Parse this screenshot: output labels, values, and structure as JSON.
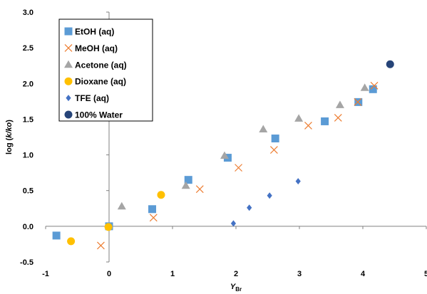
{
  "chart_data": {
    "type": "scatter",
    "xlabel": "Y",
    "xlabel_sub": "Br",
    "ylabel_prefix": "log (",
    "ylabel_italic": "k/ko",
    "ylabel_suffix": ")",
    "xlim": [
      -1,
      5
    ],
    "ylim": [
      -0.5,
      3.0
    ],
    "xticks": [
      -1,
      0,
      1,
      2,
      3,
      4,
      5
    ],
    "xtick_labels": [
      "-1",
      "0",
      "1",
      "2",
      "3",
      "4",
      "5"
    ],
    "yticks": [
      -0.5,
      0.0,
      0.5,
      1.0,
      1.5,
      2.0,
      2.5,
      3.0
    ],
    "ytick_labels": [
      "-0.5",
      "0.0",
      "0.5",
      "1.0",
      "1.5",
      "2.0",
      "2.5",
      "3.0"
    ],
    "grid": false,
    "legend_position": "top-left",
    "series": [
      {
        "name": "EtOH (aq)",
        "marker": "square",
        "color": "#5b9bd5",
        "points": [
          [
            -0.83,
            -0.13
          ],
          [
            0.0,
            0.0
          ],
          [
            0.68,
            0.24
          ],
          [
            1.25,
            0.65
          ],
          [
            1.87,
            0.96
          ],
          [
            2.62,
            1.23
          ],
          [
            3.4,
            1.47
          ],
          [
            3.93,
            1.74
          ],
          [
            4.16,
            1.92
          ]
        ]
      },
      {
        "name": "MeOH (aq)",
        "marker": "x",
        "color": "#ed7d31",
        "points": [
          [
            -0.13,
            -0.27
          ],
          [
            0.7,
            0.12
          ],
          [
            1.43,
            0.52
          ],
          [
            2.04,
            0.82
          ],
          [
            2.6,
            1.07
          ],
          [
            3.14,
            1.41
          ],
          [
            3.61,
            1.52
          ],
          [
            3.92,
            1.74
          ],
          [
            4.18,
            1.97
          ]
        ]
      },
      {
        "name": "Acetone (aq)",
        "marker": "triangle",
        "color": "#a5a5a5",
        "points": [
          [
            0.2,
            0.28
          ],
          [
            1.21,
            0.57
          ],
          [
            1.82,
            0.99
          ],
          [
            2.43,
            1.36
          ],
          [
            2.99,
            1.51
          ],
          [
            3.64,
            1.7
          ],
          [
            4.03,
            1.94
          ]
        ]
      },
      {
        "name": "Dioxane (aq)",
        "marker": "circle",
        "color": "#ffc000",
        "points": [
          [
            -0.6,
            -0.21
          ],
          [
            -0.01,
            -0.01
          ],
          [
            0.82,
            0.44
          ]
        ]
      },
      {
        "name": "TFE (aq)",
        "marker": "diamond",
        "color": "#4472c4",
        "points": [
          [
            1.96,
            0.04
          ],
          [
            2.21,
            0.26
          ],
          [
            2.53,
            0.43
          ],
          [
            2.98,
            0.63
          ]
        ]
      },
      {
        "name": "100% Water",
        "marker": "circle",
        "color": "#264478",
        "points": [
          [
            4.43,
            2.27
          ]
        ]
      }
    ]
  }
}
